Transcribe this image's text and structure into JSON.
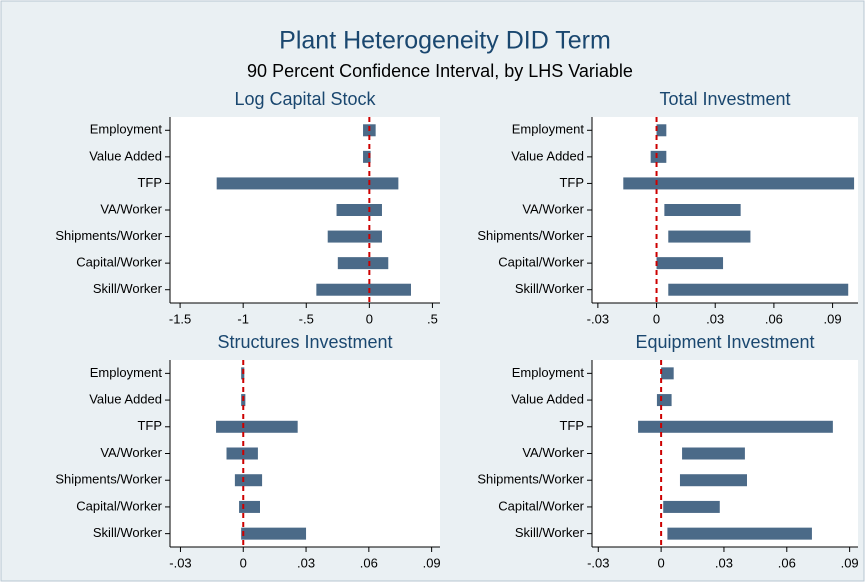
{
  "title": "Plant Heterogeneity DID Term",
  "subtitle": "90 Percent Confidence Interval, by LHS Variable",
  "chart_data": [
    {
      "type": "range-bar",
      "title": "Log Capital Stock",
      "color": "#4b6a88",
      "categories": [
        "Employment",
        "Value Added",
        "TFP",
        "VA/Worker",
        "Shipments/Worker",
        "Capital/Worker",
        "Skill/Worker"
      ],
      "low": [
        -0.05,
        -0.05,
        -1.21,
        -0.26,
        -0.33,
        -0.25,
        -0.42
      ],
      "high": [
        0.05,
        0.01,
        0.23,
        0.1,
        0.1,
        0.15,
        0.33
      ],
      "xlim": [
        -1.58,
        0.56
      ],
      "xticks": [
        -1.5,
        -1,
        {
          "value": -0.5,
          "label": "-.5"
        },
        0,
        {
          "value": 0.5,
          "label": ".5"
        }
      ],
      "refline": {
        "value": 0,
        "color": "#cc0000"
      }
    },
    {
      "type": "range-bar",
      "title": "Total Investment",
      "color": "#4b6a88",
      "categories": [
        "Employment",
        "Value Added",
        "TFP",
        "VA/Worker",
        "Shipments/Worker",
        "Capital/Worker",
        "Skill/Worker"
      ],
      "low": [
        0,
        -0.003,
        -0.017,
        0.004,
        0.006,
        0,
        0.006
      ],
      "high": [
        0.005,
        0.005,
        0.101,
        0.043,
        0.048,
        0.034,
        0.098
      ],
      "xlim": [
        -0.033,
        0.103
      ],
      "xticks": [
        {
          "value": -0.03,
          "label": "-.03"
        },
        0,
        {
          "value": 0.03,
          "label": ".03"
        },
        {
          "value": 0.06,
          "label": ".06"
        },
        {
          "value": 0.09,
          "label": ".09"
        }
      ],
      "refline": {
        "value": 0,
        "color": "#cc0000"
      }
    },
    {
      "type": "range-bar",
      "title": "Structures Investment",
      "color": "#4b6a88",
      "categories": [
        "Employment",
        "Value Added",
        "TFP",
        "VA/Worker",
        "Shipments/Worker",
        "Capital/Worker",
        "Skill/Worker"
      ],
      "low": [
        -0.001,
        -0.001,
        -0.013,
        -0.008,
        -0.004,
        -0.002,
        -0.001
      ],
      "high": [
        0.0005,
        0.001,
        0.026,
        0.007,
        0.009,
        0.008,
        0.03
      ],
      "xlim": [
        -0.035,
        0.094
      ],
      "xticks": [
        {
          "value": -0.03,
          "label": "-.03"
        },
        0,
        {
          "value": 0.03,
          "label": ".03"
        },
        {
          "value": 0.06,
          "label": ".06"
        },
        {
          "value": 0.09,
          "label": ".09"
        }
      ],
      "refline": {
        "value": 0,
        "color": "#cc0000"
      }
    },
    {
      "type": "range-bar",
      "title": "Equipment Investment",
      "color": "#4b6a88",
      "categories": [
        "Employment",
        "Value Added",
        "TFP",
        "VA/Worker",
        "Shipments/Worker",
        "Capital/Worker",
        "Skill/Worker"
      ],
      "low": [
        0,
        -0.002,
        -0.011,
        0.01,
        0.009,
        0.001,
        0.003
      ],
      "high": [
        0.006,
        0.005,
        0.082,
        0.04,
        0.041,
        0.028,
        0.072
      ],
      "xlim": [
        -0.033,
        0.094
      ],
      "xticks": [
        {
          "value": -0.03,
          "label": "-.03"
        },
        0,
        {
          "value": 0.03,
          "label": ".03"
        },
        {
          "value": 0.06,
          "label": ".06"
        },
        {
          "value": 0.09,
          "label": ".09"
        }
      ],
      "refline": {
        "value": 0,
        "color": "#cc0000"
      }
    }
  ]
}
